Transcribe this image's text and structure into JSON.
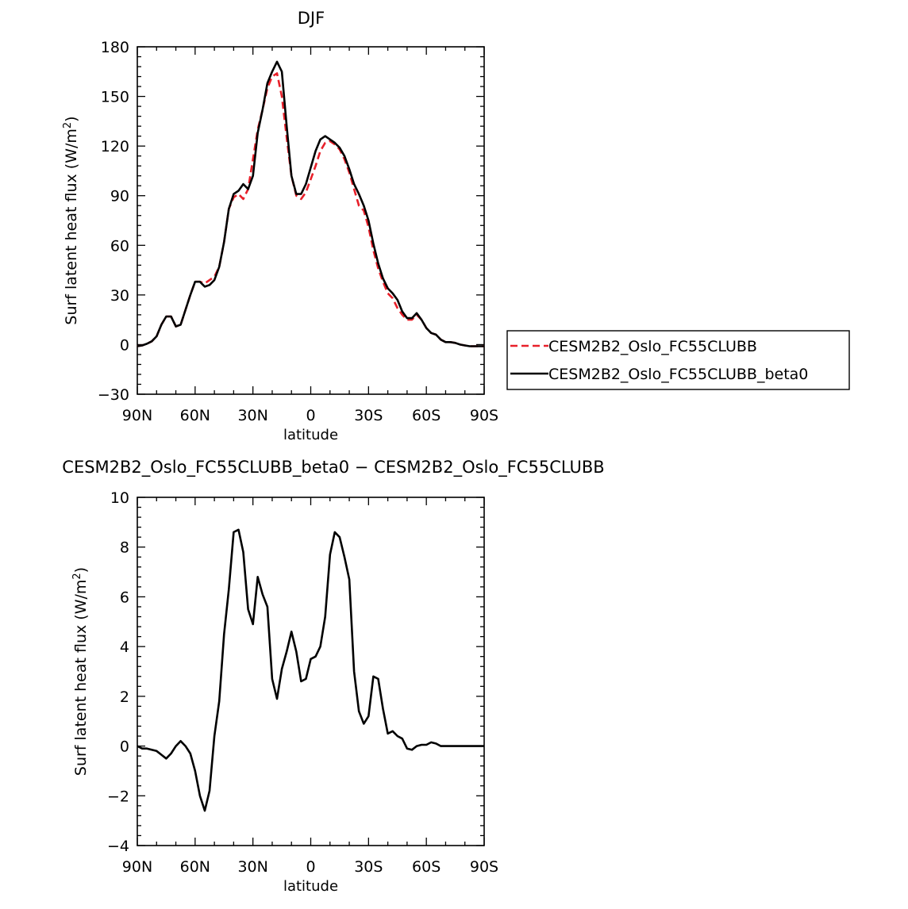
{
  "chart_data": [
    {
      "type": "line",
      "title": "DJF",
      "xlabel": "latitude",
      "ylabel": "Surf latent heat flux (W/m",
      "ylabel_sup": "2",
      "ylabel_end": ")",
      "xlim": [
        90,
        -90
      ],
      "ylim": [
        -30,
        180
      ],
      "xticks": [
        90,
        60,
        30,
        0,
        -30,
        -60,
        -90
      ],
      "xtick_labels": [
        "90N",
        "60N",
        "30N",
        "0",
        "30S",
        "60S",
        "90S"
      ],
      "yticks": [
        -30,
        0,
        30,
        60,
        90,
        120,
        150,
        180
      ],
      "ytick_labels": [
        "−30",
        "0",
        "30",
        "60",
        "90",
        "120",
        "150",
        "180"
      ],
      "legend_position": "right",
      "series": [
        {
          "name": "CESM2B2_Oslo_FC55CLUBB",
          "color": "#e8202a",
          "dash": "dashed",
          "x": [
            90,
            87.5,
            85,
            82.5,
            80,
            77.5,
            75,
            72.5,
            70,
            67.5,
            65,
            62.5,
            60,
            57.5,
            55,
            52.5,
            50,
            47.5,
            45,
            42.5,
            40,
            37.5,
            35,
            32.5,
            30,
            27.5,
            25,
            22.5,
            20,
            17.5,
            15,
            12.5,
            10,
            7.5,
            5,
            2.5,
            0,
            -2.5,
            -5,
            -7.5,
            -10,
            -12.5,
            -15,
            -17.5,
            -20,
            -22.5,
            -25,
            -27.5,
            -30,
            -32.5,
            -35,
            -37.5,
            -40,
            -42.5,
            -45,
            -47.5,
            -50,
            -52.5,
            -55,
            -57.5,
            -60,
            -62.5,
            -65,
            -67.5,
            -70,
            -72.5,
            -75,
            -77.5,
            -80,
            -82.5,
            -85,
            -87.5,
            -90
          ],
          "y": [
            -1,
            -0.5,
            0.5,
            2,
            5,
            12,
            17,
            17,
            11,
            12,
            21,
            30,
            38,
            38,
            37,
            39,
            41,
            47,
            62,
            82,
            89,
            91,
            88,
            94,
            112,
            130,
            142,
            155,
            162,
            164,
            150,
            125,
            102,
            90,
            88,
            92,
            100,
            108,
            117,
            122,
            123,
            121,
            118,
            112,
            104,
            94,
            84,
            81,
            71,
            57,
            46,
            38,
            31,
            28,
            22,
            18,
            15,
            15,
            18,
            15,
            10,
            7,
            6,
            3,
            1.5,
            1.5,
            1,
            0,
            -0.5,
            -1,
            -1,
            -1,
            -1
          ]
        },
        {
          "name": "CESM2B2_Oslo_FC55CLUBB_beta0",
          "color": "#000000",
          "dash": "solid",
          "x": [
            90,
            87.5,
            85,
            82.5,
            80,
            77.5,
            75,
            72.5,
            70,
            67.5,
            65,
            62.5,
            60,
            57.5,
            55,
            52.5,
            50,
            47.5,
            45,
            42.5,
            40,
            37.5,
            35,
            32.5,
            30,
            27.5,
            25,
            22.5,
            20,
            17.5,
            15,
            12.5,
            10,
            7.5,
            5,
            2.5,
            0,
            -2.5,
            -5,
            -7.5,
            -10,
            -12.5,
            -15,
            -17.5,
            -20,
            -22.5,
            -25,
            -27.5,
            -30,
            -32.5,
            -35,
            -37.5,
            -40,
            -42.5,
            -45,
            -47.5,
            -50,
            -52.5,
            -55,
            -57.5,
            -60,
            -62.5,
            -65,
            -67.5,
            -70,
            -72.5,
            -75,
            -77.5,
            -80,
            -82.5,
            -85,
            -87.5,
            -90
          ],
          "y": [
            -1,
            -0.5,
            0.5,
            2,
            5,
            12,
            17,
            17,
            11,
            12,
            21,
            30,
            38,
            38,
            35,
            36,
            39,
            47,
            62,
            82,
            91,
            93,
            97,
            94,
            102,
            128,
            142,
            158,
            165,
            171,
            165,
            132,
            102,
            91,
            91,
            97,
            107,
            117,
            124,
            126,
            124,
            122,
            119,
            114,
            106,
            97,
            91,
            84,
            75,
            61,
            49,
            40,
            34,
            31,
            27,
            20,
            16,
            16,
            19,
            15,
            10,
            7,
            6,
            3,
            1.5,
            1.5,
            1,
            0,
            -0.5,
            -1,
            -1,
            -1,
            -1
          ]
        }
      ]
    },
    {
      "type": "line",
      "title": "CESM2B2_Oslo_FC55CLUBB_beta0 − CESM2B2_Oslo_FC55CLUBB",
      "xlabel": "latitude",
      "ylabel": "Surf latent heat flux (W/m",
      "ylabel_sup": "2",
      "ylabel_end": ")",
      "xlim": [
        90,
        -90
      ],
      "ylim": [
        -4,
        10
      ],
      "xticks": [
        90,
        60,
        30,
        0,
        -30,
        -60,
        -90
      ],
      "xtick_labels": [
        "90N",
        "60N",
        "30N",
        "0",
        "30S",
        "60S",
        "90S"
      ],
      "yticks": [
        -4,
        -2,
        0,
        2,
        4,
        6,
        8,
        10
      ],
      "ytick_labels": [
        "−4",
        "−2",
        "0",
        "2",
        "4",
        "6",
        "8",
        "10"
      ],
      "series": [
        {
          "color": "#000000",
          "dash": "solid",
          "x": [
            90,
            87.5,
            85,
            82.5,
            80,
            77.5,
            75,
            72.5,
            70,
            67.5,
            65,
            62.5,
            60,
            57.5,
            55,
            52.5,
            50,
            47.5,
            45,
            42.5,
            40,
            37.5,
            35,
            32.5,
            30,
            27.5,
            25,
            22.5,
            20,
            17.5,
            15,
            12.5,
            10,
            7.5,
            5,
            2.5,
            0,
            -2.5,
            -5,
            -7.5,
            -10,
            -12.5,
            -15,
            -17.5,
            -20,
            -22.5,
            -25,
            -27.5,
            -30,
            -32.5,
            -35,
            -37.5,
            -40,
            -42.5,
            -45,
            -47.5,
            -50,
            -52.5,
            -55,
            -57.5,
            -60,
            -62.5,
            -65,
            -67.5,
            -70,
            -72.5,
            -75,
            -77.5,
            -80,
            -82.5,
            -85,
            -87.5,
            -90
          ],
          "y": [
            0,
            -0.1,
            -0.1,
            -0.15,
            -0.2,
            -0.35,
            -0.5,
            -0.3,
            0,
            0.2,
            0,
            -0.3,
            -1,
            -2,
            -2.6,
            -1.8,
            0.4,
            1.8,
            4.5,
            6.3,
            8.6,
            8.7,
            7.8,
            5.5,
            4.9,
            6.8,
            6.1,
            5.6,
            2.7,
            1.9,
            3.1,
            3.8,
            4.6,
            3.8,
            2.6,
            2.7,
            3.5,
            3.6,
            4,
            5.2,
            7.7,
            8.6,
            8.4,
            7.6,
            6.7,
            3,
            1.4,
            0.9,
            1.2,
            2.8,
            2.7,
            1.5,
            0.5,
            0.6,
            0.4,
            0.3,
            -0.1,
            -0.15,
            0,
            0.05,
            0.05,
            0.15,
            0.1,
            0,
            0,
            0,
            0,
            0,
            0,
            0,
            0,
            0,
            0
          ]
        }
      ]
    }
  ]
}
